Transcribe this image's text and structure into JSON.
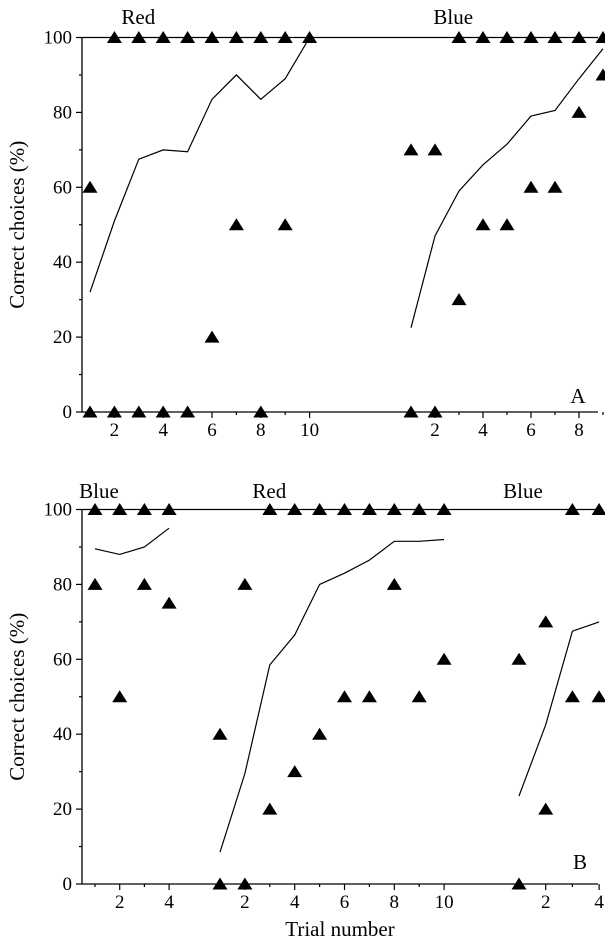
{
  "chart_data": [
    {
      "type": "scatter",
      "panel_label": "A",
      "ylabel": "Correct choices (%)",
      "xlabel": "",
      "ylim": [
        0,
        100
      ],
      "yticks": [
        0,
        20,
        40,
        60,
        80,
        100
      ],
      "grid": false,
      "legend": "none",
      "phases": [
        {
          "label": "Red",
          "xticks": [
            "2",
            "4",
            "6",
            "8",
            "10"
          ],
          "trials": [
            1,
            2,
            3,
            4,
            5,
            6,
            7,
            8,
            9,
            10
          ],
          "points": [
            [
              1,
              60
            ],
            [
              1,
              0
            ],
            [
              2,
              100
            ],
            [
              2,
              0
            ],
            [
              3,
              100
            ],
            [
              3,
              0
            ],
            [
              4,
              100
            ],
            [
              4,
              0
            ],
            [
              5,
              100
            ],
            [
              5,
              0
            ],
            [
              6,
              100
            ],
            [
              6,
              20
            ],
            [
              7,
              100
            ],
            [
              7,
              50
            ],
            [
              8,
              100
            ],
            [
              8,
              0
            ],
            [
              9,
              100
            ],
            [
              9,
              50
            ],
            [
              10,
              100
            ]
          ],
          "line": [
            [
              1,
              32
            ],
            [
              2,
              51
            ],
            [
              3,
              67.5
            ],
            [
              4,
              70
            ],
            [
              5,
              69.5
            ],
            [
              6,
              83.5
            ],
            [
              7,
              90
            ],
            [
              8,
              83.5
            ],
            [
              9,
              89
            ],
            [
              10,
              100
            ]
          ]
        },
        {
          "label": "Blue",
          "xticks": [
            "2",
            "4",
            "6",
            "8"
          ],
          "trials": [
            1,
            2,
            3,
            4,
            5,
            6,
            7,
            8,
            9
          ],
          "points": [
            [
              1,
              70
            ],
            [
              1,
              0
            ],
            [
              2,
              70
            ],
            [
              2,
              0
            ],
            [
              3,
              100
            ],
            [
              3,
              30
            ],
            [
              4,
              100
            ],
            [
              4,
              50
            ],
            [
              5,
              100
            ],
            [
              5,
              50
            ],
            [
              6,
              100
            ],
            [
              6,
              60
            ],
            [
              7,
              100
            ],
            [
              7,
              60
            ],
            [
              8,
              100
            ],
            [
              8,
              80
            ],
            [
              9,
              100
            ],
            [
              9,
              90
            ]
          ],
          "line": [
            [
              1,
              22.5
            ],
            [
              2,
              47
            ],
            [
              3,
              59
            ],
            [
              4,
              66
            ],
            [
              5,
              71.5
            ],
            [
              6,
              79
            ],
            [
              7,
              80.5
            ],
            [
              8,
              89
            ],
            [
              9,
              97
            ]
          ]
        }
      ]
    },
    {
      "type": "scatter",
      "panel_label": "B",
      "ylabel": "Correct choices (%)",
      "xlabel": "Trial number",
      "ylim": [
        0,
        100
      ],
      "yticks": [
        0,
        20,
        40,
        60,
        80,
        100
      ],
      "grid": false,
      "legend": "none",
      "phases": [
        {
          "label": "Blue",
          "xticks": [
            "2",
            "4"
          ],
          "trials": [
            1,
            2,
            3,
            4
          ],
          "points": [
            [
              1,
              100
            ],
            [
              1,
              80
            ],
            [
              2,
              100
            ],
            [
              2,
              50
            ],
            [
              3,
              100
            ],
            [
              3,
              80
            ],
            [
              4,
              100
            ],
            [
              4,
              75
            ]
          ],
          "line": [
            [
              1,
              89.5
            ],
            [
              2,
              88
            ],
            [
              3,
              90
            ],
            [
              4,
              95
            ]
          ]
        },
        {
          "label": "Red",
          "xticks": [
            "2",
            "4",
            "6",
            "8",
            "10"
          ],
          "trials": [
            1,
            2,
            3,
            4,
            5,
            6,
            7,
            8,
            9,
            10
          ],
          "points": [
            [
              1,
              40
            ],
            [
              1,
              0
            ],
            [
              2,
              80
            ],
            [
              2,
              0
            ],
            [
              3,
              100
            ],
            [
              3,
              20
            ],
            [
              4,
              100
            ],
            [
              4,
              30
            ],
            [
              5,
              100
            ],
            [
              5,
              40
            ],
            [
              6,
              100
            ],
            [
              6,
              50
            ],
            [
              7,
              100
            ],
            [
              7,
              50
            ],
            [
              8,
              100
            ],
            [
              8,
              80
            ],
            [
              9,
              100
            ],
            [
              9,
              50
            ],
            [
              10,
              100
            ],
            [
              10,
              60
            ]
          ],
          "line": [
            [
              1,
              8.5
            ],
            [
              2,
              29.5
            ],
            [
              3,
              58.5
            ],
            [
              4,
              66.5
            ],
            [
              5,
              80
            ],
            [
              6,
              83
            ],
            [
              7,
              86.5
            ],
            [
              8,
              91.5
            ],
            [
              9,
              91.5
            ],
            [
              10,
              92
            ]
          ]
        },
        {
          "label": "Blue",
          "xticks": [
            "2",
            "4"
          ],
          "trials": [
            1,
            2,
            3,
            4
          ],
          "points": [
            [
              1,
              60
            ],
            [
              1,
              0
            ],
            [
              2,
              70
            ],
            [
              2,
              20
            ],
            [
              3,
              100
            ],
            [
              3,
              50
            ],
            [
              4,
              100
            ],
            [
              4,
              50
            ]
          ],
          "line": [
            [
              1,
              23.5
            ],
            [
              2,
              42.5
            ],
            [
              3,
              67.5
            ],
            [
              4,
              70
            ]
          ]
        }
      ]
    }
  ]
}
